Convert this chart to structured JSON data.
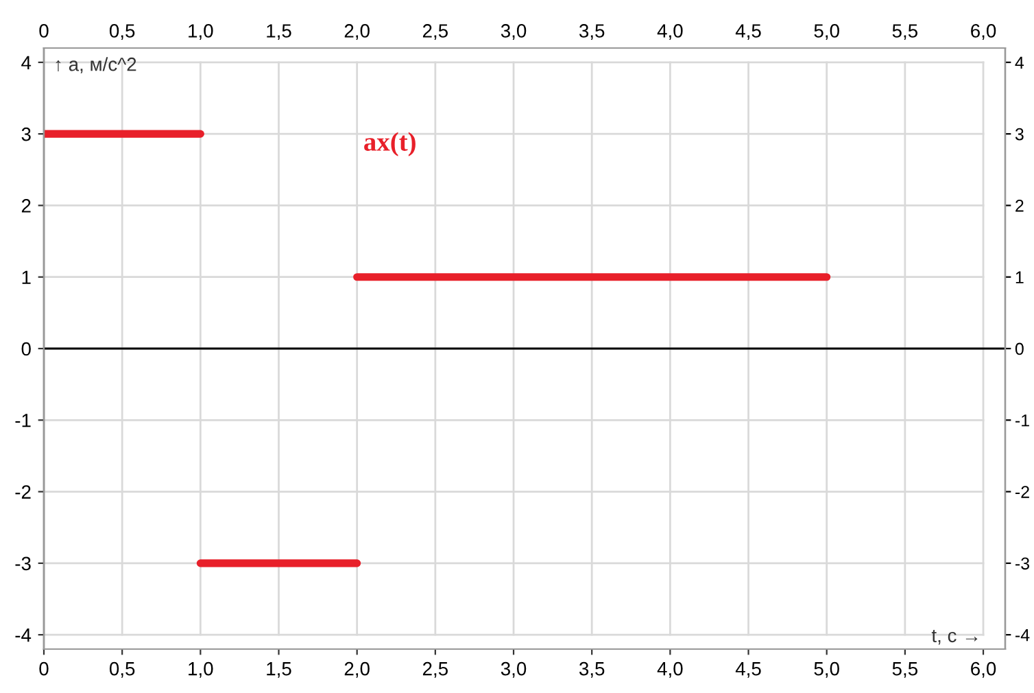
{
  "chart_data": {
    "type": "line",
    "xlabel": "t, c →",
    "ylabel": "↑ a, м/с^2",
    "annotations": [
      "ax(t)"
    ],
    "series": [
      {
        "x": [
          0,
          1
        ],
        "values": [
          3,
          3
        ],
        "color": "#e8202a"
      },
      {
        "x": [
          1,
          2
        ],
        "values": [
          -3,
          -3
        ],
        "color": "#e8202a"
      },
      {
        "x": [
          2,
          5
        ],
        "values": [
          1,
          1
        ],
        "color": "#e8202a"
      }
    ],
    "xlim": [
      0,
      6.14
    ],
    "ylim": [
      -4.2,
      4.2
    ],
    "xticks": [
      0,
      {
        "value": 0.5,
        "label": "0,5"
      },
      {
        "value": 1,
        "label": "1,0"
      },
      {
        "value": 1.5,
        "label": "1,5"
      },
      {
        "value": 2,
        "label": "2,0"
      },
      {
        "value": 2.5,
        "label": "2,5"
      },
      {
        "value": 3,
        "label": "3,0"
      },
      {
        "value": 3.5,
        "label": "3,5"
      },
      {
        "value": 4,
        "label": "4,0"
      },
      {
        "value": 4.5,
        "label": "4,5"
      },
      {
        "value": 5,
        "label": "5,0"
      },
      {
        "value": 5.5,
        "label": "5,5"
      },
      {
        "value": 6,
        "label": "6,0"
      }
    ],
    "x2lim": [
      0,
      6.14
    ],
    "x2ticks": [
      0,
      {
        "value": 0.5,
        "label": "0,5"
      },
      {
        "value": 1,
        "label": "1,0"
      },
      {
        "value": 1.5,
        "label": "1,5"
      },
      {
        "value": 2,
        "label": "2,0"
      },
      {
        "value": 2.5,
        "label": "2,5"
      },
      {
        "value": 3,
        "label": "3,0"
      },
      {
        "value": 3.5,
        "label": "3,5"
      },
      {
        "value": 4,
        "label": "4,0"
      },
      {
        "value": 4.5,
        "label": "4,5"
      },
      {
        "value": 5,
        "label": "5,0"
      },
      {
        "value": 5.5,
        "label": "5,5"
      },
      {
        "value": 6,
        "label": "6,0"
      }
    ],
    "yticks": [
      -4,
      -3,
      -2,
      -1,
      0,
      1,
      2,
      3,
      4
    ],
    "y2lim": [
      -4.2,
      4.2
    ],
    "y2ticks": [
      -4,
      -3,
      -2,
      -1,
      0,
      1,
      2,
      3,
      4
    ],
    "ref_lines": [
      {
        "axis": "y",
        "value": 0,
        "color": "#000000"
      }
    ],
    "grid": true,
    "marker": "none",
    "line_style": "solid"
  }
}
